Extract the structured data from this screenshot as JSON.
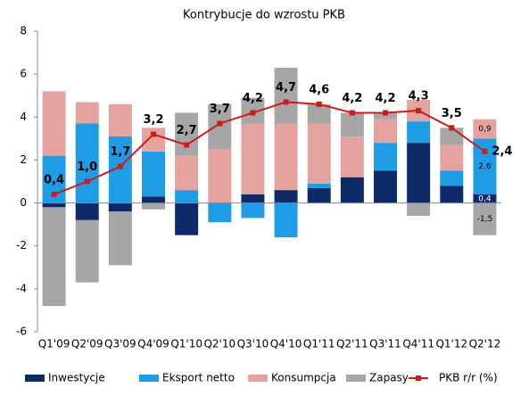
{
  "chart_data": {
    "type": "bar",
    "title": "Kontrybucje do wzrostu PKB",
    "categories": [
      "Q1'09",
      "Q2'09",
      "Q3'09",
      "Q4'09",
      "Q1'10",
      "Q2'10",
      "Q3'10",
      "Q4'10",
      "Q1'11",
      "Q2'11",
      "Q3'11",
      "Q4'11",
      "Q1'12",
      "Q2'12"
    ],
    "ylim": [
      -6,
      8
    ],
    "yticks": [
      8,
      6,
      4,
      2,
      0,
      -2,
      -4,
      -6
    ],
    "stacked": true,
    "legend": "bottom",
    "series": [
      {
        "name": "Inwestycje",
        "type": "bar",
        "color": "#0e2a68",
        "values": [
          -0.2,
          -0.8,
          -0.4,
          0.3,
          -1.5,
          0.0,
          0.4,
          0.6,
          0.7,
          1.2,
          1.5,
          2.8,
          0.8,
          0.4
        ],
        "value_labels": [
          null,
          null,
          null,
          null,
          null,
          null,
          null,
          null,
          null,
          null,
          null,
          null,
          null,
          "0,4"
        ]
      },
      {
        "name": "Eksport netto",
        "type": "bar",
        "color": "#1e9de6",
        "values": [
          2.2,
          3.7,
          3.1,
          2.1,
          0.6,
          -0.9,
          -0.7,
          -1.6,
          0.2,
          0.0,
          1.3,
          1.0,
          0.7,
          2.6
        ],
        "value_labels": [
          null,
          null,
          null,
          null,
          null,
          null,
          null,
          null,
          null,
          null,
          null,
          null,
          null,
          "2,6"
        ]
      },
      {
        "name": "Konsumpcja",
        "type": "bar",
        "color": "#e5a3a0",
        "values": [
          3.0,
          1.0,
          1.5,
          1.1,
          1.6,
          2.5,
          3.3,
          3.1,
          2.8,
          1.9,
          1.1,
          1.0,
          1.2,
          0.9
        ],
        "value_labels": [
          null,
          null,
          null,
          null,
          null,
          null,
          null,
          null,
          null,
          null,
          null,
          null,
          null,
          "0,9"
        ]
      },
      {
        "name": "Zapasy",
        "type": "bar",
        "color": "#a6a6a6",
        "values": [
          -4.6,
          -2.9,
          -2.5,
          -0.3,
          2.0,
          2.1,
          1.2,
          2.6,
          0.9,
          1.1,
          0.3,
          -0.6,
          0.8,
          -1.5
        ],
        "value_labels": [
          null,
          null,
          null,
          null,
          null,
          null,
          null,
          null,
          null,
          null,
          null,
          null,
          null,
          "-1,5"
        ]
      },
      {
        "name": "PKB r/r (%)",
        "type": "line",
        "color": "#cc1b1b",
        "values": [
          0.4,
          1.0,
          1.7,
          3.2,
          2.7,
          3.7,
          4.2,
          4.7,
          4.6,
          4.2,
          4.2,
          4.3,
          3.5,
          2.4
        ],
        "value_labels": [
          "0,4",
          "1,0",
          "1,7",
          "3,2",
          "2,7",
          "3,7",
          "4,2",
          "4,7",
          "4,6",
          "4,2",
          "4,2",
          "4,3",
          "3,5",
          "2,4"
        ]
      }
    ]
  }
}
